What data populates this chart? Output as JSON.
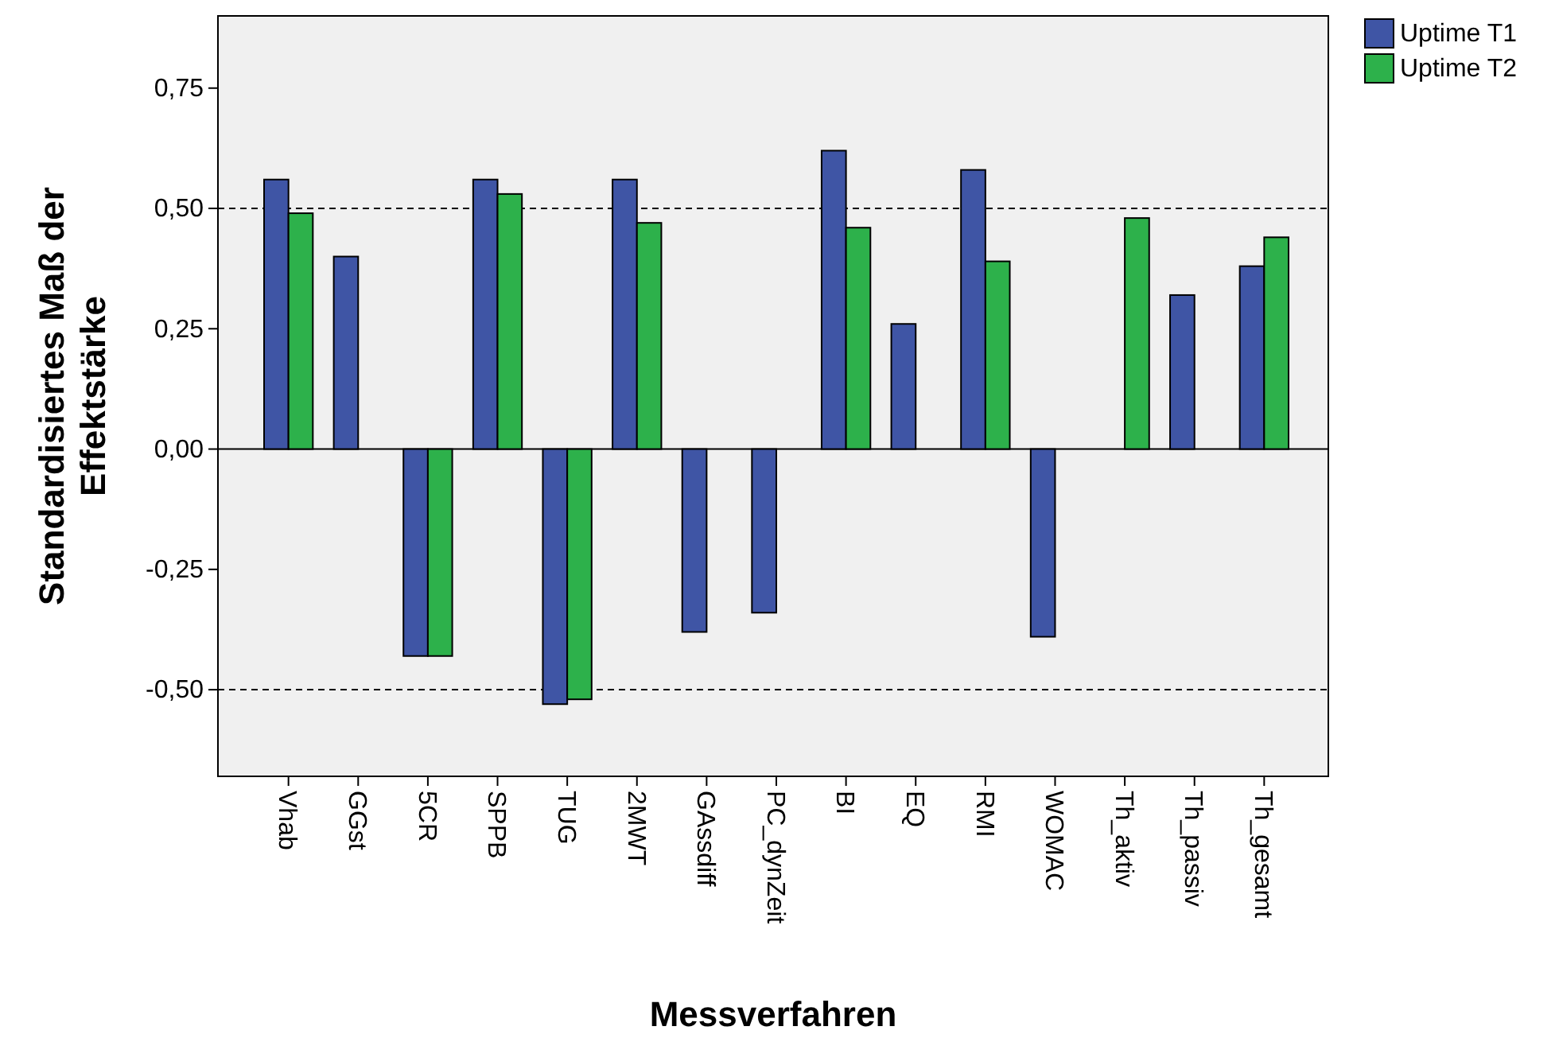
{
  "chart_data": {
    "type": "bar",
    "xlabel": "Messverfahren",
    "ylabel": "Standardisiertes Maß der\nEffektstärke",
    "categories": [
      "Vhab",
      "GGst",
      "5CR",
      "SPPB",
      "TUG",
      "2MWT",
      "GAssdiff",
      "PC_dynZeit",
      "BI",
      "EQ",
      "RMI",
      "WOMAC",
      "Th_aktiv",
      "Th_passiv",
      "Th_gesamt"
    ],
    "series": [
      {
        "name": "Uptime T1",
        "color": "#3f55a5",
        "values": [
          0.56,
          0.4,
          -0.43,
          0.56,
          -0.53,
          0.56,
          -0.38,
          -0.34,
          0.62,
          0.26,
          0.58,
          -0.39,
          null,
          0.32,
          0.38
        ]
      },
      {
        "name": "Uptime T2",
        "color": "#2db14b",
        "values": [
          0.49,
          null,
          -0.43,
          0.53,
          -0.52,
          0.47,
          null,
          null,
          0.46,
          null,
          0.39,
          null,
          0.48,
          null,
          0.44
        ]
      }
    ],
    "ylim": [
      -0.68,
      0.9
    ],
    "yticks": [
      {
        "value": -0.5,
        "label": "-0,50"
      },
      {
        "value": -0.25,
        "label": "-0,25"
      },
      {
        "value": 0,
        "label": "0,00"
      },
      {
        "value": 0.25,
        "label": "0,25"
      },
      {
        "value": 0.5,
        "label": "0,50"
      },
      {
        "value": 0.75,
        "label": "0,75"
      }
    ],
    "ref_lines": [
      {
        "axis": "y",
        "value": 0.5,
        "line_style": "dashed"
      },
      {
        "axis": "y",
        "value": -0.5,
        "line_style": "dashed"
      },
      {
        "axis": "y",
        "value": 0,
        "line_style": "solid"
      }
    ],
    "legend": "top right",
    "grid": false
  }
}
